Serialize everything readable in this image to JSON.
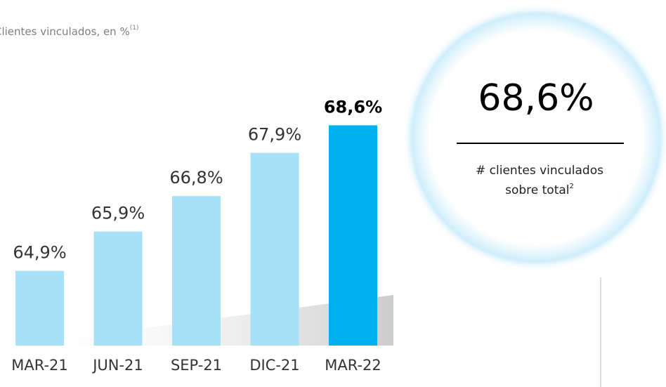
{
  "chart_data": {
    "type": "bar",
    "title": "Clientes vinculados, en %",
    "title_sup": "(1)",
    "categories": [
      "MAR-21",
      "JUN-21",
      "SEP-21",
      "DIC-21",
      "MAR-22"
    ],
    "values": [
      64.9,
      65.9,
      66.8,
      67.9,
      68.6
    ],
    "value_labels": [
      "64,9%",
      "65,9%",
      "66,8%",
      "67,9%",
      "68,6%"
    ],
    "colors": [
      "#a6e1f8",
      "#a6e1f8",
      "#a6e1f8",
      "#a6e1f8",
      "#00b0f0"
    ],
    "ylim": [
      63,
      69
    ]
  },
  "kpi": {
    "value": "68,6%",
    "line1": "# clientes vinculados",
    "line2": "sobre total",
    "line2_sup": "2"
  }
}
